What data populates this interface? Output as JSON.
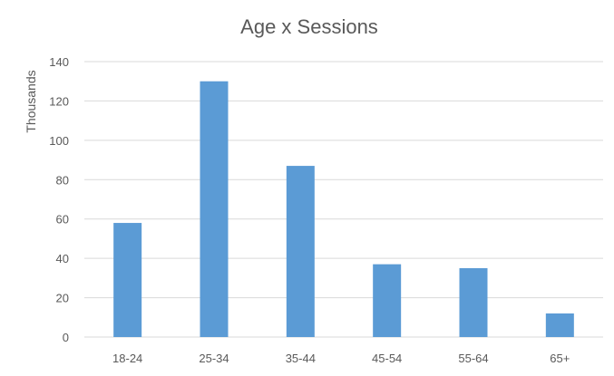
{
  "chart_data": {
    "type": "bar",
    "title": "Age x Sessions",
    "ylabel": "Thousands",
    "xlabel": "",
    "categories": [
      "18-24",
      "25-34",
      "35-44",
      "45-54",
      "55-64",
      "65+"
    ],
    "values": [
      58,
      130,
      87,
      37,
      35,
      12
    ],
    "ylim": [
      0,
      140
    ],
    "yticks": [
      0,
      20,
      40,
      60,
      80,
      100,
      120,
      140
    ],
    "grid": true,
    "legend": "none",
    "bar_color": "#5b9bd5"
  }
}
